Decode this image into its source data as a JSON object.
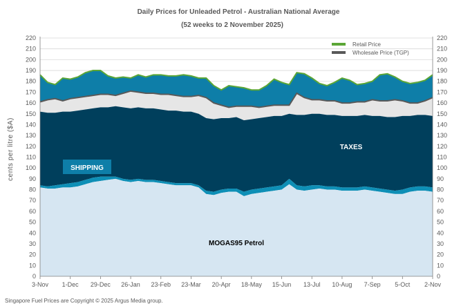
{
  "chart_data": {
    "type": "area",
    "title": "Daily Prices for Unleaded Petrol - Australian National Average",
    "subtitle": "(52 weeks to 2 November 2025)",
    "ylabel": "cents per litre ($A)",
    "ylim": [
      0,
      220
    ],
    "yticks": [
      0,
      10,
      20,
      30,
      40,
      50,
      60,
      70,
      80,
      90,
      100,
      110,
      120,
      130,
      140,
      150,
      160,
      170,
      180,
      190,
      200,
      210,
      220
    ],
    "x_tick_labels": [
      "3-Nov",
      "1-Dec",
      "29-Dec",
      "26-Jan",
      "23-Feb",
      "23-Mar",
      "20-Apr",
      "18-May",
      "15-Jun",
      "13-Jul",
      "10-Aug",
      "7-Sep",
      "5-Oct",
      "2-Nov"
    ],
    "grid": true,
    "legend_position": "top-right",
    "x": [
      "3-Nov",
      "10-Nov",
      "17-Nov",
      "24-Nov",
      "1-Dec",
      "8-Dec",
      "15-Dec",
      "22-Dec",
      "29-Dec",
      "5-Jan",
      "12-Jan",
      "19-Jan",
      "26-Jan",
      "2-Feb",
      "9-Feb",
      "16-Feb",
      "23-Feb",
      "2-Mar",
      "9-Mar",
      "16-Mar",
      "23-Mar",
      "30-Mar",
      "6-Apr",
      "13-Apr",
      "20-Apr",
      "27-Apr",
      "4-May",
      "11-May",
      "18-May",
      "25-May",
      "1-Jun",
      "8-Jun",
      "15-Jun",
      "22-Jun",
      "29-Jun",
      "6-Jul",
      "13-Jul",
      "20-Jul",
      "27-Jul",
      "3-Aug",
      "10-Aug",
      "17-Aug",
      "24-Aug",
      "31-Aug",
      "7-Sep",
      "14-Sep",
      "21-Sep",
      "28-Sep",
      "5-Oct",
      "12-Oct",
      "19-Oct",
      "26-Oct",
      "2-Nov"
    ],
    "series": [
      {
        "name": "MOGAS95 Petrol",
        "color": "#d6e6f2",
        "values": [
          82,
          81,
          81,
          82,
          82,
          83,
          85,
          87,
          88,
          89,
          90,
          88,
          87,
          88,
          87,
          87,
          86,
          85,
          84,
          84,
          84,
          82,
          76,
          75,
          77,
          78,
          78,
          74,
          76,
          77,
          78,
          79,
          80,
          85,
          80,
          79,
          80,
          81,
          80,
          80,
          79,
          79,
          79,
          80,
          79,
          78,
          77,
          76,
          76,
          78,
          79,
          79,
          78
        ]
      },
      {
        "name": "Wholesale Price (TGP)",
        "color": "#595959",
        "values": [
          161,
          163,
          164,
          162,
          164,
          165,
          166,
          167,
          168,
          168,
          167,
          169,
          171,
          170,
          169,
          169,
          168,
          168,
          167,
          166,
          166,
          167,
          165,
          160,
          158,
          156,
          157,
          157,
          157,
          156,
          157,
          158,
          158,
          158,
          169,
          165,
          163,
          163,
          162,
          162,
          160,
          160,
          161,
          161,
          163,
          162,
          162,
          163,
          162,
          160,
          160,
          162,
          165
        ]
      },
      {
        "name": "Retail Price",
        "color": "#5ba636",
        "values": [
          186,
          179,
          177,
          183,
          182,
          184,
          188,
          190,
          190,
          185,
          183,
          184,
          183,
          186,
          184,
          186,
          186,
          185,
          185,
          186,
          185,
          183,
          183,
          176,
          172,
          176,
          175,
          174,
          172,
          172,
          176,
          182,
          179,
          177,
          188,
          187,
          183,
          178,
          176,
          179,
          183,
          181,
          177,
          178,
          180,
          186,
          187,
          184,
          180,
          178,
          179,
          181,
          186
        ]
      },
      {
        "name": "Shipping",
        "color": "#0e8fb6",
        "values": [
          84,
          83,
          84,
          85,
          86,
          87,
          89,
          91,
          92,
          92,
          92,
          90,
          89,
          90,
          89,
          89,
          88,
          87,
          86,
          86,
          86,
          84,
          79,
          78,
          80,
          81,
          81,
          78,
          80,
          81,
          82,
          83,
          84,
          90,
          84,
          83,
          84,
          84,
          83,
          83,
          82,
          82,
          82,
          83,
          82,
          81,
          80,
          79,
          80,
          82,
          83,
          83,
          82
        ]
      },
      {
        "name": "Taxes",
        "color": "#003f5c",
        "values": [
          152,
          151,
          151,
          152,
          152,
          153,
          154,
          155,
          156,
          156,
          157,
          156,
          155,
          156,
          155,
          155,
          154,
          153,
          153,
          152,
          152,
          150,
          146,
          145,
          146,
          146,
          147,
          144,
          145,
          146,
          147,
          148,
          148,
          150,
          149,
          149,
          150,
          150,
          149,
          149,
          148,
          148,
          148,
          149,
          148,
          148,
          147,
          147,
          148,
          148,
          149,
          149,
          148
        ]
      }
    ],
    "legend": [
      "Retail Price",
      "Wholesale Price (TGP)"
    ],
    "area_labels": {
      "shipping": "SHIPPING",
      "taxes": "TAXES",
      "product": "MOGAS95  Petrol"
    },
    "footer": "Singapore  Fuel Prices are Copyright  © 2025  Argus Media group."
  },
  "colors": {
    "retail": "#5ba636",
    "wholesale_line": "#595959",
    "wholesale_band": "#e6e6e6",
    "margin_band": "#0e7ea8",
    "taxes": "#003f5c",
    "shipping": "#0e8fb6",
    "product": "#d6e6f2",
    "shipping_label_box": "#0e7ea8"
  }
}
